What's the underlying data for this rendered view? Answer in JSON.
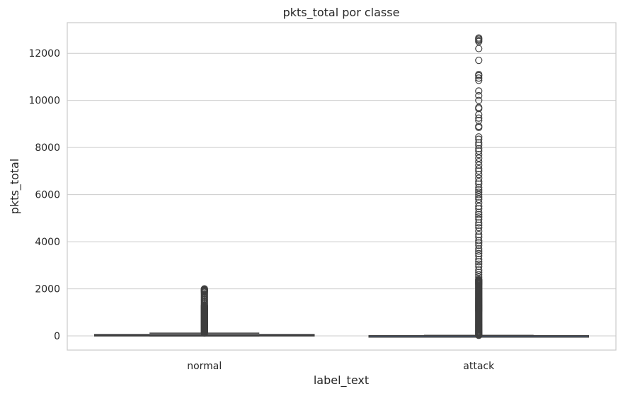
{
  "chart_data": {
    "type": "box",
    "title": "pkts_total por classe",
    "xlabel": "label_text",
    "ylabel": "pkts_total",
    "categories": [
      "normal",
      "attack"
    ],
    "ylim": [
      -600,
      13300
    ],
    "yticks": [
      0,
      2000,
      4000,
      6000,
      8000,
      10000,
      12000
    ],
    "grid": true,
    "boxes": [
      {
        "category": "normal",
        "whisker_low": 0,
        "q1": 5,
        "median": 22,
        "q3": 60,
        "whisker_high": 120,
        "color": "#4c72b0",
        "fliers_dense_range": [
          120,
          1300
        ],
        "fliers": [
          1350,
          1400,
          1450,
          1500,
          1550,
          1600,
          1650,
          1700,
          1750,
          1800,
          1850,
          1880,
          1900,
          1920,
          1940,
          1960,
          1980,
          2000
        ]
      },
      {
        "category": "attack",
        "whisker_low": 0,
        "q1": 1,
        "median": 4,
        "q3": 10,
        "whisker_high": 25,
        "color": "#4c72b0",
        "fliers_dense_range": [
          25,
          2400
        ],
        "fliers": [
          2500,
          2600,
          2700,
          2800,
          2950,
          3050,
          3150,
          3250,
          3400,
          3500,
          3600,
          3700,
          3850,
          3950,
          4050,
          4200,
          4300,
          4450,
          4600,
          4700,
          4800,
          4950,
          5050,
          5150,
          5250,
          5400,
          5500,
          5650,
          5800,
          5900,
          6000,
          6100,
          6200,
          6300,
          6450,
          6550,
          6700,
          6850,
          7000,
          7100,
          7250,
          7400,
          7550,
          7700,
          7850,
          7950,
          8100,
          8200,
          8350,
          8450,
          8850,
          8900,
          9150,
          9250,
          9400,
          9650,
          9700,
          10000,
          10200,
          10400,
          10850,
          10950,
          11050,
          11100,
          11700,
          12200,
          12500,
          12550,
          12600,
          12650
        ]
      }
    ]
  }
}
